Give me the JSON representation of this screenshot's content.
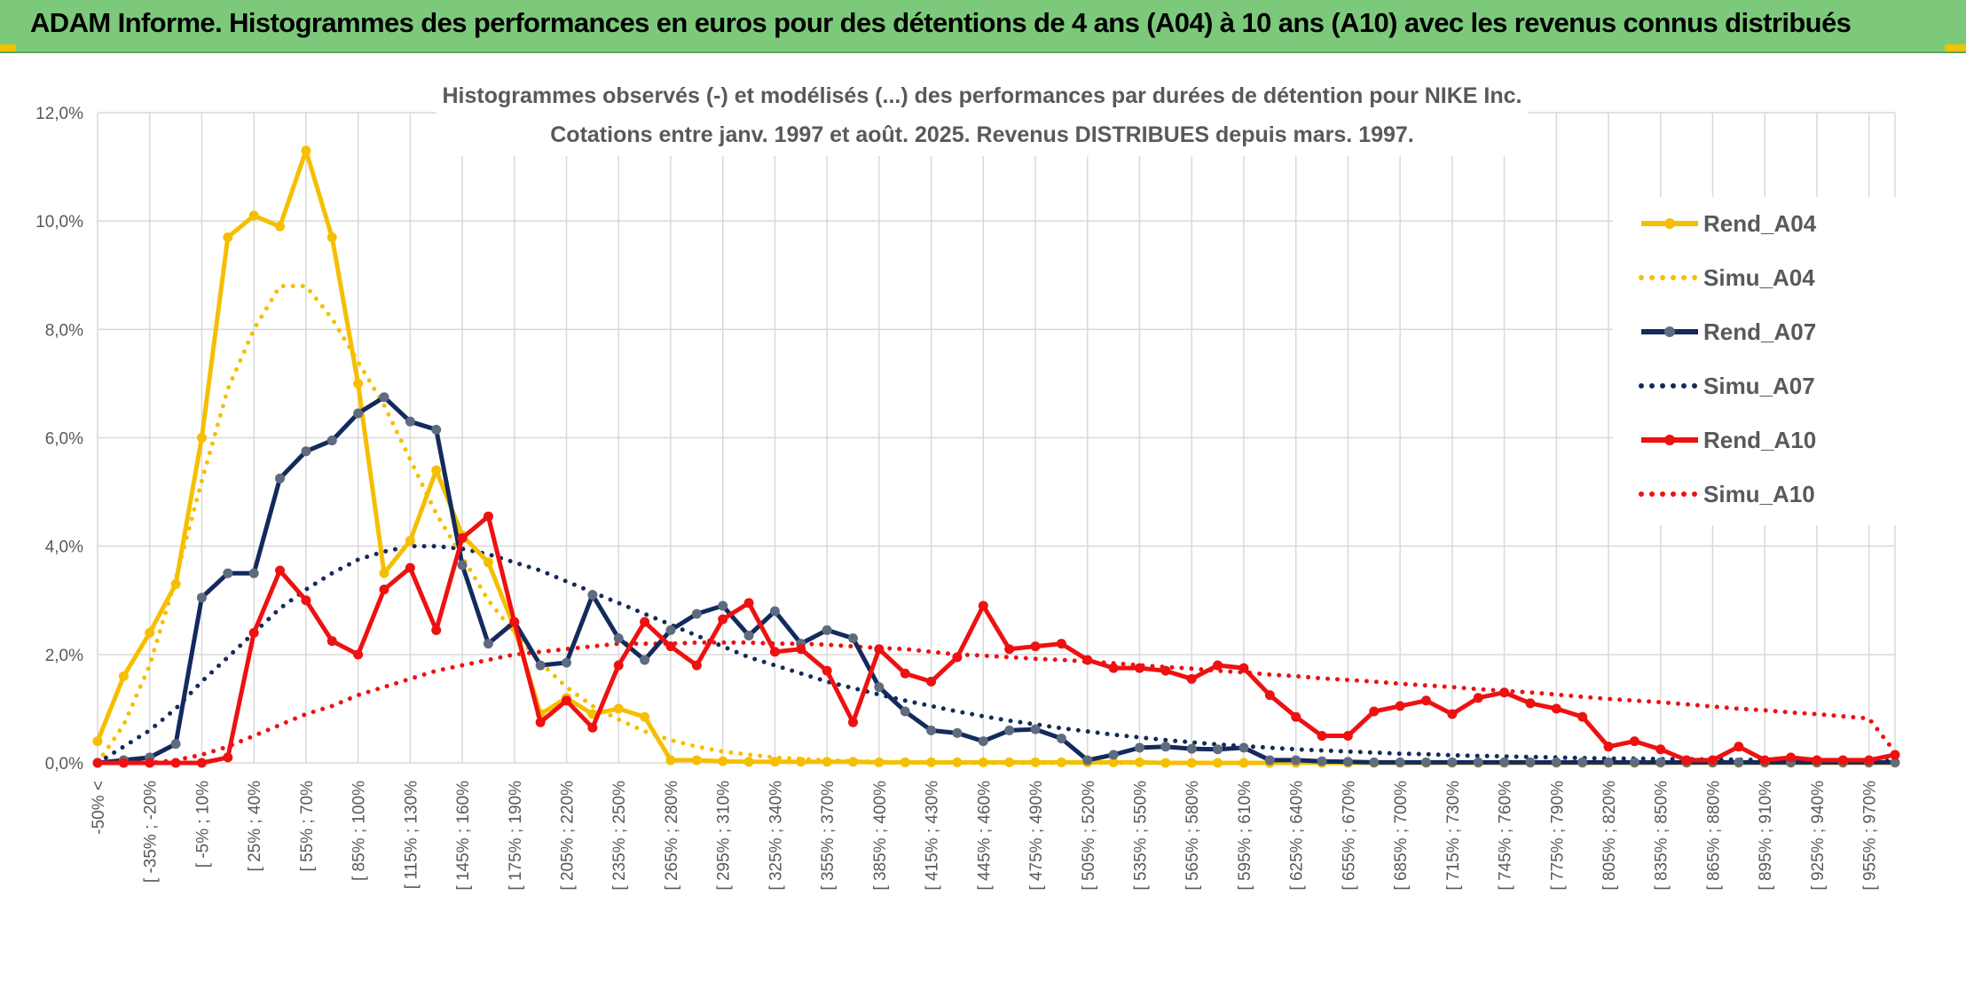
{
  "banner": {
    "title": "ADAM Informe. Histogrammes des performances en euros pour des détentions de 4 ans (A04) à 10 ans (A10) avec les revenus connus distribués"
  },
  "chart_data": {
    "type": "line",
    "title": "Histogrammes observés (-) et modélisés (...) des performances par durées de détention pour NIKE Inc.",
    "subtitle": "Cotations entre janv. 1997 et août. 2025. Revenus DISTRIBUES depuis mars. 1997.",
    "xlabel": "",
    "ylabel": "",
    "ylim": [
      0,
      12
    ],
    "y_ticks": [
      "0,0%",
      "2,0%",
      "4,0%",
      "6,0%",
      "8,0%",
      "10,0%",
      "12,0%"
    ],
    "grid": true,
    "legend_position": "right",
    "x_tick_labels": [
      "-50% <",
      "[ -35% ; -20%",
      "[ -5% ; 10%",
      "[ 25% ; 40%",
      "[ 55% ; 70%",
      "[ 85% ; 100%",
      "[ 115% ; 130%",
      "[ 145% ; 160%",
      "[ 175% ; 190%",
      "[ 205% ; 220%",
      "[ 235% ; 250%",
      "[ 265% ; 280%",
      "[ 295% ; 310%",
      "[ 325% ; 340%",
      "[ 355% ; 370%",
      "[ 385% ; 400%",
      "[ 415% ; 430%",
      "[ 445% ; 460%",
      "[ 475% ; 490%",
      "[ 505% ; 520%",
      "[ 535% ; 550%",
      "[ 565% ; 580%",
      "[ 595% ; 610%",
      "[ 625% ; 640%",
      "[ 655% ; 670%",
      "[ 685% ; 700%",
      "[ 715% ; 730%",
      "[ 745% ; 760%",
      "[ 775% ; 790%",
      "[ 805% ; 820%",
      "[ 835% ; 850%",
      "[ 865% ; 880%",
      "[ 895% ; 910%",
      "[ 925% ; 940%",
      "[ 955% ; 970%"
    ],
    "colors": {
      "A04": "#f5bf00",
      "A07": "#132a5c",
      "A10": "#ee1111"
    },
    "series": [
      {
        "name": "Rend_A04",
        "color": "#f5bf00",
        "style": "solid",
        "markers": true,
        "values": [
          0.4,
          1.6,
          2.4,
          3.3,
          6.0,
          9.7,
          10.1,
          9.9,
          11.3,
          9.7,
          7.0,
          3.5,
          4.1,
          5.4,
          4.2,
          3.7,
          2.5,
          0.9,
          1.2,
          0.9,
          1.0,
          0.85,
          0.05,
          0.05,
          0.03,
          0.02,
          0.02,
          0.02,
          0.02,
          0.02,
          0.01,
          0.01,
          0.01,
          0.01,
          0.01,
          0.01,
          0.01,
          0.01,
          0.01,
          0.01,
          0.01,
          0,
          0,
          0,
          0,
          0,
          0,
          0,
          0,
          0,
          0,
          0,
          0,
          0,
          0,
          0,
          0,
          0,
          0,
          0,
          0,
          0,
          0,
          0,
          0,
          0,
          0,
          0,
          0,
          0
        ]
      },
      {
        "name": "Simu_A04",
        "color": "#f5bf00",
        "style": "dotted",
        "markers": false,
        "values": [
          0.0,
          0.7,
          1.8,
          3.4,
          5.2,
          6.9,
          8.0,
          8.8,
          8.8,
          8.2,
          7.4,
          6.6,
          5.6,
          4.6,
          3.8,
          3.0,
          2.4,
          1.85,
          1.4,
          1.05,
          0.8,
          0.58,
          0.42,
          0.3,
          0.21,
          0.15,
          0.1,
          0.07,
          0.05,
          0.03,
          0.02,
          0.01,
          0.01,
          0,
          0,
          0,
          0,
          0,
          0,
          0,
          0,
          0,
          0,
          0,
          0,
          0,
          0,
          0,
          0,
          0,
          0,
          0,
          0,
          0,
          0,
          0,
          0,
          0,
          0,
          0,
          0,
          0,
          0,
          0,
          0,
          0,
          0,
          0,
          0,
          0
        ]
      },
      {
        "name": "Rend_A07",
        "color": "#132a5c",
        "style": "solid",
        "markers": true,
        "values": [
          0.0,
          0.05,
          0.1,
          0.35,
          3.05,
          3.5,
          3.5,
          5.25,
          5.75,
          5.95,
          6.45,
          6.75,
          6.3,
          6.15,
          3.65,
          2.2,
          2.6,
          1.8,
          1.85,
          3.1,
          2.3,
          1.9,
          2.45,
          2.75,
          2.9,
          2.35,
          2.8,
          2.2,
          2.45,
          2.3,
          1.4,
          0.95,
          0.6,
          0.55,
          0.4,
          0.6,
          0.62,
          0.45,
          0.05,
          0.15,
          0.28,
          0.3,
          0.26,
          0.25,
          0.28,
          0.05,
          0.05,
          0.03,
          0.02,
          0.01,
          0.01,
          0.01,
          0.01,
          0.01,
          0.01,
          0.01,
          0.01,
          0.01,
          0.01,
          0.01,
          0.01,
          0.01,
          0.01,
          0.01,
          0.01,
          0.01,
          0.01,
          0.01,
          0.01,
          0.01
        ]
      },
      {
        "name": "Simu_A07",
        "color": "#132a5c",
        "style": "dotted",
        "markers": false,
        "values": [
          0.0,
          0.3,
          0.6,
          1.0,
          1.5,
          1.95,
          2.4,
          2.85,
          3.2,
          3.5,
          3.75,
          3.9,
          4.0,
          4.0,
          3.95,
          3.85,
          3.7,
          3.55,
          3.35,
          3.15,
          2.95,
          2.75,
          2.55,
          2.35,
          2.15,
          1.95,
          1.8,
          1.65,
          1.5,
          1.38,
          1.26,
          1.15,
          1.05,
          0.95,
          0.86,
          0.78,
          0.71,
          0.64,
          0.58,
          0.52,
          0.47,
          0.42,
          0.38,
          0.34,
          0.31,
          0.28,
          0.25,
          0.23,
          0.21,
          0.19,
          0.17,
          0.16,
          0.14,
          0.13,
          0.12,
          0.11,
          0.1,
          0.09,
          0.08,
          0.08,
          0.07,
          0.07,
          0.06,
          0.06,
          0.05,
          0.05,
          0.05,
          0.05,
          0.04,
          0.04
        ]
      },
      {
        "name": "Rend_A10",
        "color": "#ee1111",
        "style": "solid",
        "markers": true,
        "values": [
          0.0,
          0.0,
          0.0,
          0.0,
          0.0,
          0.1,
          2.4,
          3.55,
          3.0,
          2.25,
          2.0,
          3.2,
          3.6,
          2.45,
          4.15,
          4.55,
          2.6,
          0.75,
          1.15,
          0.65,
          1.8,
          2.6,
          2.15,
          1.8,
          2.65,
          2.95,
          2.05,
          2.1,
          1.7,
          0.75,
          2.1,
          1.65,
          1.5,
          1.95,
          2.9,
          2.1,
          2.15,
          2.2,
          1.9,
          1.75,
          1.75,
          1.7,
          1.55,
          1.8,
          1.75,
          1.25,
          0.85,
          0.5,
          0.5,
          0.95,
          1.05,
          1.15,
          0.9,
          1.2,
          1.3,
          1.1,
          1.0,
          0.85,
          0.3,
          0.4,
          0.25,
          0.05,
          0.05,
          0.3,
          0.05,
          0.1,
          0.05,
          0.05,
          0.05,
          0.15
        ]
      },
      {
        "name": "Simu_A10",
        "color": "#ee1111",
        "style": "dotted",
        "markers": false,
        "values": [
          0.0,
          0.0,
          0.0,
          0.05,
          0.15,
          0.3,
          0.5,
          0.7,
          0.9,
          1.05,
          1.25,
          1.4,
          1.55,
          1.7,
          1.8,
          1.9,
          2.0,
          2.05,
          2.1,
          2.15,
          2.2,
          2.2,
          2.2,
          2.22,
          2.22,
          2.22,
          2.2,
          2.2,
          2.18,
          2.15,
          2.12,
          2.1,
          2.05,
          2.0,
          1.98,
          1.95,
          1.92,
          1.9,
          1.87,
          1.84,
          1.8,
          1.77,
          1.74,
          1.7,
          1.67,
          1.63,
          1.6,
          1.56,
          1.53,
          1.5,
          1.46,
          1.43,
          1.4,
          1.36,
          1.33,
          1.3,
          1.26,
          1.22,
          1.18,
          1.15,
          1.12,
          1.08,
          1.04,
          1.0,
          0.97,
          0.93,
          0.9,
          0.86,
          0.82,
          0.2
        ]
      }
    ]
  }
}
